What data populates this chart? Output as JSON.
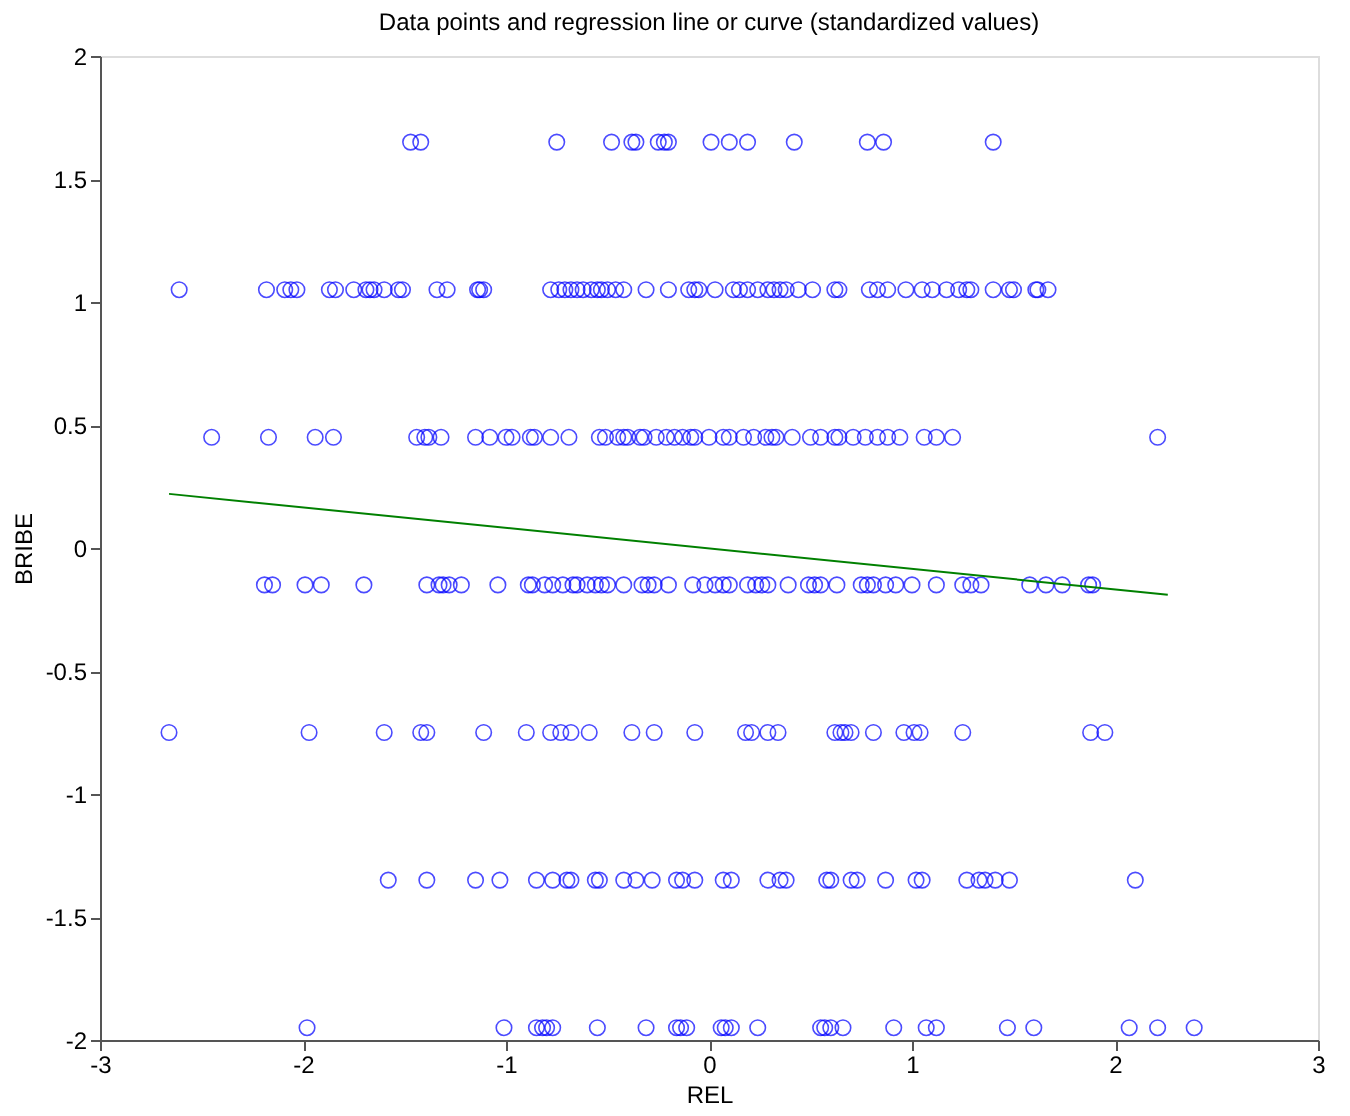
{
  "chart_data": {
    "type": "scatter",
    "title": "Data points and regression line or curve (standardized values)",
    "xlabel": "REL",
    "ylabel": "BRIBE",
    "xlim": [
      -3,
      3
    ],
    "ylim": [
      -2,
      2
    ],
    "xticks": [
      -3,
      -2,
      -1,
      0,
      1,
      2,
      3
    ],
    "yticks": [
      -2,
      -1.5,
      -1,
      -0.5,
      0,
      0.5,
      1,
      1.5,
      2
    ],
    "grid": false,
    "series": [
      {
        "color": "#0000ff",
        "marker": "circle",
        "x": [
          -1.47,
          -1.42,
          -0.75,
          -0.48,
          -0.38,
          -0.36,
          -0.25,
          -0.22,
          -0.2,
          0.01,
          0.1,
          0.19,
          0.42,
          0.78,
          0.86,
          1.4,
          -2.61,
          -2.18,
          -2.09,
          -2.06,
          -2.03,
          -1.87,
          -1.84,
          -1.75,
          -1.69,
          -1.67,
          -1.65,
          -1.6,
          -1.53,
          -1.51,
          -1.34,
          -1.29,
          -1.14,
          -1.13,
          -1.11,
          -0.78,
          -0.74,
          -0.71,
          -0.68,
          -0.65,
          -0.62,
          -0.58,
          -0.55,
          -0.53,
          -0.5,
          -0.46,
          -0.42,
          -0.31,
          -0.2,
          -0.1,
          -0.07,
          -0.05,
          0.03,
          0.12,
          0.15,
          0.19,
          0.24,
          0.29,
          0.32,
          0.35,
          0.38,
          0.44,
          0.51,
          0.62,
          0.64,
          0.79,
          0.83,
          0.88,
          0.97,
          1.05,
          1.1,
          1.17,
          1.23,
          1.27,
          1.29,
          1.4,
          1.48,
          1.5,
          1.61,
          1.62,
          1.67,
          -2.45,
          -2.17,
          -1.94,
          -1.85,
          -1.44,
          -1.4,
          -1.38,
          -1.32,
          -1.15,
          -1.08,
          -1.0,
          -0.97,
          -0.88,
          -0.86,
          -0.78,
          -0.69,
          -0.54,
          -0.51,
          -0.45,
          -0.42,
          -0.4,
          -0.34,
          -0.32,
          -0.26,
          -0.21,
          -0.17,
          -0.13,
          -0.09,
          -0.07,
          0.0,
          0.07,
          0.1,
          0.17,
          0.22,
          0.28,
          0.31,
          0.33,
          0.41,
          0.5,
          0.55,
          0.62,
          0.64,
          0.71,
          0.77,
          0.83,
          0.88,
          0.94,
          1.06,
          1.12,
          1.2,
          2.21,
          -2.19,
          -2.15,
          -1.99,
          -1.91,
          -1.7,
          -1.39,
          -1.33,
          -1.31,
          -1.28,
          -1.22,
          -1.04,
          -0.89,
          -0.87,
          -0.81,
          -0.77,
          -0.72,
          -0.67,
          -0.65,
          -0.6,
          -0.56,
          -0.53,
          -0.5,
          -0.42,
          -0.33,
          -0.3,
          -0.27,
          -0.2,
          -0.08,
          -0.02,
          0.03,
          0.07,
          0.1,
          0.19,
          0.23,
          0.26,
          0.29,
          0.39,
          0.49,
          0.52,
          0.55,
          0.63,
          0.75,
          0.78,
          0.81,
          0.87,
          0.92,
          1.0,
          1.12,
          1.25,
          1.29,
          1.34,
          1.58,
          1.66,
          1.74,
          1.87,
          1.89,
          -2.66,
          -1.97,
          -1.6,
          -1.42,
          -1.39,
          -1.11,
          -0.9,
          -0.78,
          -0.73,
          -0.68,
          -0.59,
          -0.38,
          -0.27,
          -0.07,
          0.18,
          0.21,
          0.29,
          0.34,
          0.62,
          0.65,
          0.67,
          0.7,
          0.81,
          0.96,
          1.01,
          1.04,
          1.25,
          1.88,
          1.95,
          -1.58,
          -1.39,
          -1.15,
          -1.03,
          -0.85,
          -0.77,
          -0.7,
          -0.68,
          -0.56,
          -0.54,
          -0.42,
          -0.36,
          -0.28,
          -0.16,
          -0.13,
          -0.07,
          0.07,
          0.11,
          0.29,
          0.35,
          0.38,
          0.58,
          0.6,
          0.7,
          0.73,
          0.87,
          1.02,
          1.05,
          1.27,
          1.33,
          1.36,
          1.41,
          1.48,
          2.1,
          -1.98,
          -1.01,
          -0.85,
          -0.82,
          -0.8,
          -0.77,
          -0.55,
          -0.31,
          -0.16,
          -0.14,
          -0.11,
          0.06,
          0.08,
          0.11,
          0.24,
          0.55,
          0.57,
          0.6,
          0.66,
          0.91,
          1.07,
          1.12,
          1.47,
          1.6,
          2.07,
          2.21,
          2.39
        ],
        "values": [
          1.65,
          1.65,
          1.65,
          1.65,
          1.65,
          1.65,
          1.65,
          1.65,
          1.65,
          1.65,
          1.65,
          1.65,
          1.65,
          1.65,
          1.65,
          1.65,
          1.05,
          1.05,
          1.05,
          1.05,
          1.05,
          1.05,
          1.05,
          1.05,
          1.05,
          1.05,
          1.05,
          1.05,
          1.05,
          1.05,
          1.05,
          1.05,
          1.05,
          1.05,
          1.05,
          1.05,
          1.05,
          1.05,
          1.05,
          1.05,
          1.05,
          1.05,
          1.05,
          1.05,
          1.05,
          1.05,
          1.05,
          1.05,
          1.05,
          1.05,
          1.05,
          1.05,
          1.05,
          1.05,
          1.05,
          1.05,
          1.05,
          1.05,
          1.05,
          1.05,
          1.05,
          1.05,
          1.05,
          1.05,
          1.05,
          1.05,
          1.05,
          1.05,
          1.05,
          1.05,
          1.05,
          1.05,
          1.05,
          1.05,
          1.05,
          1.05,
          1.05,
          1.05,
          1.05,
          1.05,
          1.05,
          0.45,
          0.45,
          0.45,
          0.45,
          0.45,
          0.45,
          0.45,
          0.45,
          0.45,
          0.45,
          0.45,
          0.45,
          0.45,
          0.45,
          0.45,
          0.45,
          0.45,
          0.45,
          0.45,
          0.45,
          0.45,
          0.45,
          0.45,
          0.45,
          0.45,
          0.45,
          0.45,
          0.45,
          0.45,
          0.45,
          0.45,
          0.45,
          0.45,
          0.45,
          0.45,
          0.45,
          0.45,
          0.45,
          0.45,
          0.45,
          0.45,
          0.45,
          0.45,
          0.45,
          0.45,
          0.45,
          0.45,
          0.45,
          0.45,
          0.45,
          0.45,
          -0.15,
          -0.15,
          -0.15,
          -0.15,
          -0.15,
          -0.15,
          -0.15,
          -0.15,
          -0.15,
          -0.15,
          -0.15,
          -0.15,
          -0.15,
          -0.15,
          -0.15,
          -0.15,
          -0.15,
          -0.15,
          -0.15,
          -0.15,
          -0.15,
          -0.15,
          -0.15,
          -0.15,
          -0.15,
          -0.15,
          -0.15,
          -0.15,
          -0.15,
          -0.15,
          -0.15,
          -0.15,
          -0.15,
          -0.15,
          -0.15,
          -0.15,
          -0.15,
          -0.15,
          -0.15,
          -0.15,
          -0.15,
          -0.15,
          -0.15,
          -0.15,
          -0.15,
          -0.15,
          -0.15,
          -0.15,
          -0.15,
          -0.15,
          -0.15,
          -0.15,
          -0.15,
          -0.15,
          -0.15,
          -0.15,
          -0.75,
          -0.75,
          -0.75,
          -0.75,
          -0.75,
          -0.75,
          -0.75,
          -0.75,
          -0.75,
          -0.75,
          -0.75,
          -0.75,
          -0.75,
          -0.75,
          -0.75,
          -0.75,
          -0.75,
          -0.75,
          -0.75,
          -0.75,
          -0.75,
          -0.75,
          -0.75,
          -0.75,
          -0.75,
          -0.75,
          -0.75,
          -0.75,
          -0.75,
          -1.35,
          -1.35,
          -1.35,
          -1.35,
          -1.35,
          -1.35,
          -1.35,
          -1.35,
          -1.35,
          -1.35,
          -1.35,
          -1.35,
          -1.35,
          -1.35,
          -1.35,
          -1.35,
          -1.35,
          -1.35,
          -1.35,
          -1.35,
          -1.35,
          -1.35,
          -1.35,
          -1.35,
          -1.35,
          -1.35,
          -1.35,
          -1.35,
          -1.35,
          -1.35,
          -1.35,
          -1.35,
          -1.35,
          -1.35,
          -1.95,
          -1.95,
          -1.95,
          -1.95,
          -1.95,
          -1.95,
          -1.95,
          -1.95,
          -1.95,
          -1.95,
          -1.95,
          -1.95,
          -1.95,
          -1.95,
          -1.95,
          -1.95,
          -1.95,
          -1.95,
          -1.95,
          -1.95,
          -1.95,
          -1.95,
          -1.95,
          -1.95,
          -1.95,
          -1.95,
          -1.95
        ]
      },
      {
        "type": "line",
        "color": "#008000",
        "line_style": "solid",
        "marker": "none",
        "x": [
          -2.66,
          2.26
        ],
        "values": [
          0.22,
          -0.19
        ]
      }
    ]
  }
}
